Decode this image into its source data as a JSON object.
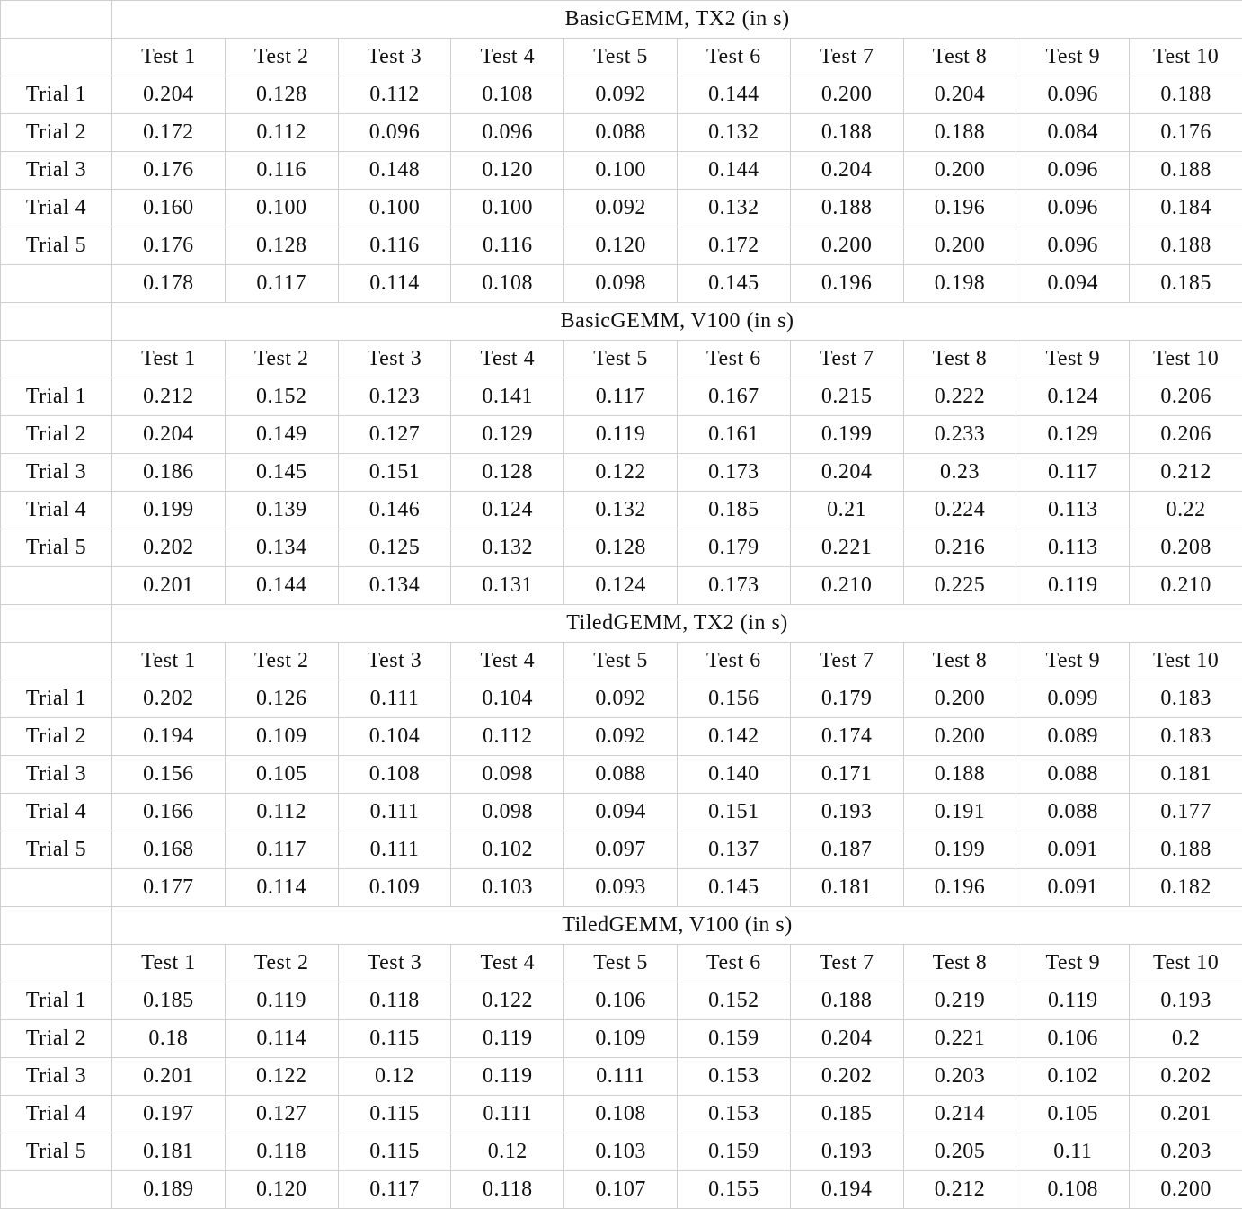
{
  "sections": [
    {
      "title": "BasicGEMM, TX2 (in s)",
      "headers": [
        "Test 1",
        "Test 2",
        "Test 3",
        "Test 4",
        "Test 5",
        "Test 6",
        "Test 7",
        "Test 8",
        "Test 9",
        "Test 10"
      ],
      "rows": [
        {
          "label": "Trial 1",
          "values": [
            "0.204",
            "0.128",
            "0.112",
            "0.108",
            "0.092",
            "0.144",
            "0.200",
            "0.204",
            "0.096",
            "0.188"
          ]
        },
        {
          "label": "Trial 2",
          "values": [
            "0.172",
            "0.112",
            "0.096",
            "0.096",
            "0.088",
            "0.132",
            "0.188",
            "0.188",
            "0.084",
            "0.176"
          ]
        },
        {
          "label": "Trial 3",
          "values": [
            "0.176",
            "0.116",
            "0.148",
            "0.120",
            "0.100",
            "0.144",
            "0.204",
            "0.200",
            "0.096",
            "0.188"
          ]
        },
        {
          "label": "Trial 4",
          "values": [
            "0.160",
            "0.100",
            "0.100",
            "0.100",
            "0.092",
            "0.132",
            "0.188",
            "0.196",
            "0.096",
            "0.184"
          ]
        },
        {
          "label": "Trial 5",
          "values": [
            "0.176",
            "0.128",
            "0.116",
            "0.116",
            "0.120",
            "0.172",
            "0.200",
            "0.200",
            "0.096",
            "0.188"
          ]
        },
        {
          "label": "",
          "values": [
            "0.178",
            "0.117",
            "0.114",
            "0.108",
            "0.098",
            "0.145",
            "0.196",
            "0.198",
            "0.094",
            "0.185"
          ]
        }
      ]
    },
    {
      "title": "BasicGEMM, V100 (in s)",
      "headers": [
        "Test 1",
        "Test 2",
        "Test 3",
        "Test 4",
        "Test 5",
        "Test 6",
        "Test 7",
        "Test 8",
        "Test 9",
        "Test 10"
      ],
      "rows": [
        {
          "label": "Trial 1",
          "values": [
            "0.212",
            "0.152",
            "0.123",
            "0.141",
            "0.117",
            "0.167",
            "0.215",
            "0.222",
            "0.124",
            "0.206"
          ]
        },
        {
          "label": "Trial 2",
          "values": [
            "0.204",
            "0.149",
            "0.127",
            "0.129",
            "0.119",
            "0.161",
            "0.199",
            "0.233",
            "0.129",
            "0.206"
          ]
        },
        {
          "label": "Trial 3",
          "values": [
            "0.186",
            "0.145",
            "0.151",
            "0.128",
            "0.122",
            "0.173",
            "0.204",
            "0.23",
            "0.117",
            "0.212"
          ]
        },
        {
          "label": "Trial 4",
          "values": [
            "0.199",
            "0.139",
            "0.146",
            "0.124",
            "0.132",
            "0.185",
            "0.21",
            "0.224",
            "0.113",
            "0.22"
          ]
        },
        {
          "label": "Trial 5",
          "values": [
            "0.202",
            "0.134",
            "0.125",
            "0.132",
            "0.128",
            "0.179",
            "0.221",
            "0.216",
            "0.113",
            "0.208"
          ]
        },
        {
          "label": "",
          "values": [
            "0.201",
            "0.144",
            "0.134",
            "0.131",
            "0.124",
            "0.173",
            "0.210",
            "0.225",
            "0.119",
            "0.210"
          ]
        }
      ]
    },
    {
      "title": "TiledGEMM, TX2 (in s)",
      "headers": [
        "Test 1",
        "Test 2",
        "Test 3",
        "Test 4",
        "Test 5",
        "Test 6",
        "Test 7",
        "Test 8",
        "Test 9",
        "Test 10"
      ],
      "rows": [
        {
          "label": "Trial 1",
          "values": [
            "0.202",
            "0.126",
            "0.111",
            "0.104",
            "0.092",
            "0.156",
            "0.179",
            "0.200",
            "0.099",
            "0.183"
          ]
        },
        {
          "label": "Trial 2",
          "values": [
            "0.194",
            "0.109",
            "0.104",
            "0.112",
            "0.092",
            "0.142",
            "0.174",
            "0.200",
            "0.089",
            "0.183"
          ]
        },
        {
          "label": "Trial 3",
          "values": [
            "0.156",
            "0.105",
            "0.108",
            "0.098",
            "0.088",
            "0.140",
            "0.171",
            "0.188",
            "0.088",
            "0.181"
          ]
        },
        {
          "label": "Trial 4",
          "values": [
            "0.166",
            "0.112",
            "0.111",
            "0.098",
            "0.094",
            "0.151",
            "0.193",
            "0.191",
            "0.088",
            "0.177"
          ]
        },
        {
          "label": "Trial 5",
          "values": [
            "0.168",
            "0.117",
            "0.111",
            "0.102",
            "0.097",
            "0.137",
            "0.187",
            "0.199",
            "0.091",
            "0.188"
          ]
        },
        {
          "label": "",
          "values": [
            "0.177",
            "0.114",
            "0.109",
            "0.103",
            "0.093",
            "0.145",
            "0.181",
            "0.196",
            "0.091",
            "0.182"
          ]
        }
      ]
    },
    {
      "title": "TiledGEMM, V100 (in s)",
      "headers": [
        "Test 1",
        "Test 2",
        "Test 3",
        "Test 4",
        "Test 5",
        "Test 6",
        "Test 7",
        "Test 8",
        "Test 9",
        "Test 10"
      ],
      "rows": [
        {
          "label": "Trial 1",
          "values": [
            "0.185",
            "0.119",
            "0.118",
            "0.122",
            "0.106",
            "0.152",
            "0.188",
            "0.219",
            "0.119",
            "0.193"
          ]
        },
        {
          "label": "Trial 2",
          "values": [
            "0.18",
            "0.114",
            "0.115",
            "0.119",
            "0.109",
            "0.159",
            "0.204",
            "0.221",
            "0.106",
            "0.2"
          ]
        },
        {
          "label": "Trial 3",
          "values": [
            "0.201",
            "0.122",
            "0.12",
            "0.119",
            "0.111",
            "0.153",
            "0.202",
            "0.203",
            "0.102",
            "0.202"
          ]
        },
        {
          "label": "Trial 4",
          "values": [
            "0.197",
            "0.127",
            "0.115",
            "0.111",
            "0.108",
            "0.153",
            "0.185",
            "0.214",
            "0.105",
            "0.201"
          ]
        },
        {
          "label": "Trial 5",
          "values": [
            "0.181",
            "0.118",
            "0.115",
            "0.12",
            "0.103",
            "0.159",
            "0.193",
            "0.205",
            "0.11",
            "0.203"
          ]
        },
        {
          "label": "",
          "values": [
            "0.189",
            "0.120",
            "0.117",
            "0.118",
            "0.107",
            "0.155",
            "0.194",
            "0.212",
            "0.108",
            "0.200"
          ]
        }
      ]
    }
  ]
}
